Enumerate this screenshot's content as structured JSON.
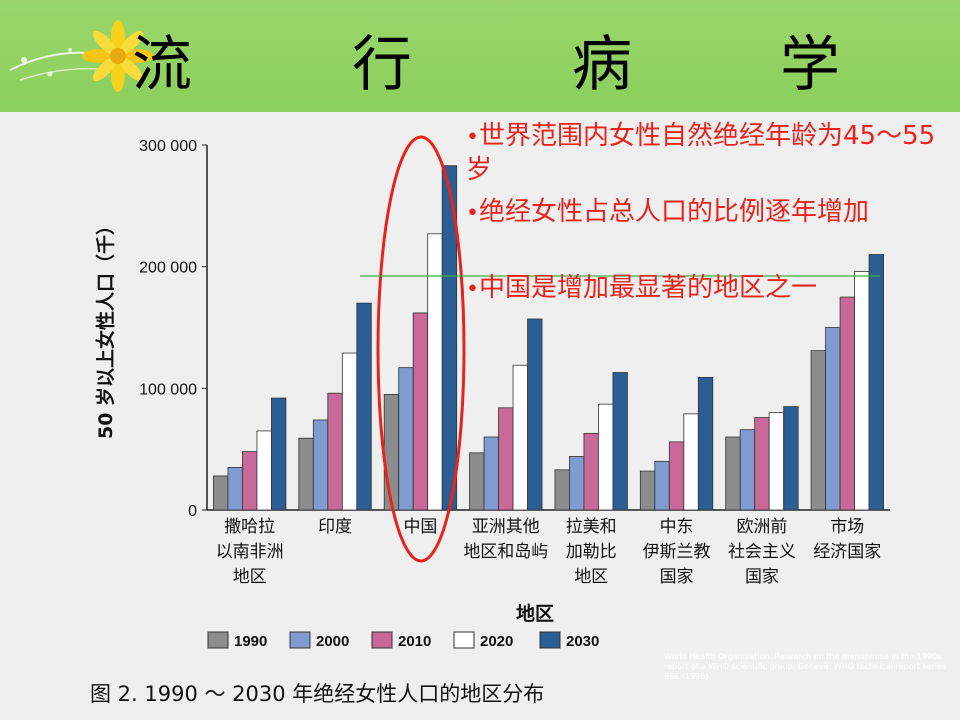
{
  "slide": {
    "title_chars": [
      "流",
      "行",
      "病",
      "学"
    ],
    "bullets": [
      "世界范围内女性自然绝经年龄为45～55岁",
      "绝经女性占总人口的比例逐年增加",
      "中国是增加最显著的地区之一"
    ],
    "caption": "图 2. 1990 ～ 2030 年绝经女性人口的地区分布",
    "credit": "World Health Organization. Research on the menopause in the 1990s: report of a WHO scientific group. Geneva: WHO technical report series 866 (1996)",
    "colors": {
      "header": "#8bcf5c",
      "bullet_text": "#e8231c",
      "highlight_ellipse": "#e8231c",
      "guide_line": "#3cb043"
    }
  },
  "chart_data": {
    "type": "bar",
    "ylabel": "50 岁以上女性人口（千）",
    "xlabel": "地区",
    "ylim": [
      0,
      300000
    ],
    "yticks": [
      0,
      100000,
      200000,
      300000
    ],
    "ytick_labels": [
      "0",
      "100 000",
      "200 000",
      "300 000"
    ],
    "categories": [
      [
        "撒哈拉",
        "以南非洲",
        "地区"
      ],
      [
        "印度"
      ],
      [
        "中国"
      ],
      [
        "亚洲其他",
        "地区和岛屿"
      ],
      [
        "拉美和",
        "加勒比",
        "地区"
      ],
      [
        "中东",
        "伊斯兰教",
        "国家"
      ],
      [
        "欧洲前",
        "社会主义",
        "国家"
      ],
      [
        "市场",
        "经济国家"
      ]
    ],
    "series": [
      {
        "name": "1990",
        "color": "#8c8c8c",
        "values": [
          28000,
          59000,
          95000,
          47000,
          33000,
          32000,
          60000,
          131000
        ]
      },
      {
        "name": "2000",
        "color": "#7f9bd0",
        "values": [
          35000,
          74000,
          117000,
          60000,
          44000,
          40000,
          66000,
          150000
        ]
      },
      {
        "name": "2010",
        "color": "#c8699a",
        "values": [
          48000,
          96000,
          162000,
          84000,
          63000,
          56000,
          76000,
          175000
        ]
      },
      {
        "name": "2020",
        "color": "#ffffff",
        "values": [
          65000,
          129000,
          227000,
          119000,
          87000,
          79000,
          80000,
          196000
        ]
      },
      {
        "name": "2030",
        "color": "#2b5e93",
        "values": [
          92000,
          170000,
          283000,
          157000,
          113000,
          109000,
          85000,
          210000
        ]
      }
    ],
    "grid": false,
    "legend_position": "bottom"
  }
}
